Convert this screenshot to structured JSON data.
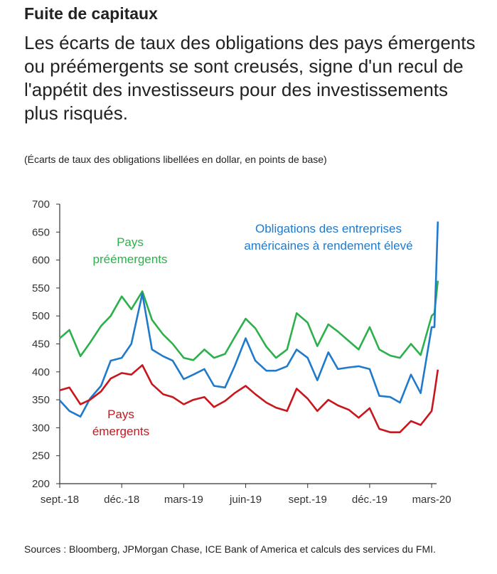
{
  "title": "Fuite de capitaux",
  "subtitle": "Les écarts de taux des obligations des pays émergents ou préémergents se sont creusés, signe d'un recul de l'appétit des investisseurs pour des investissements plus risqués.",
  "note": "(Écarts de taux des obligations libellées en dollar, en points de base)",
  "sources": "Sources : Bloomberg, JPMorgan Chase, ICE Bank of America et calculs des services du FMI.",
  "chart_data": {
    "type": "line",
    "title": "",
    "xlabel": "",
    "ylabel": "",
    "ylim": [
      200,
      700
    ],
    "yticks": [
      "200",
      "250",
      "300",
      "350",
      "400",
      "450",
      "500",
      "550",
      "600",
      "650",
      "700"
    ],
    "xticks": [
      {
        "label": "sept.-18",
        "date": "2018-09-01"
      },
      {
        "label": "déc.-18",
        "date": "2018-12-01"
      },
      {
        "label": "mars-19",
        "date": "2019-03-01"
      },
      {
        "label": "juin-19",
        "date": "2019-06-01"
      },
      {
        "label": "sept.-19",
        "date": "2019-09-01"
      },
      {
        "label": "déc.-19",
        "date": "2019-12-01"
      },
      {
        "label": "mars-20",
        "date": "2020-03-01"
      }
    ],
    "grid": false,
    "legend": "inline labels",
    "x": [
      "2018-09-01",
      "2018-09-15",
      "2018-10-01",
      "2018-10-15",
      "2018-11-01",
      "2018-11-15",
      "2018-12-01",
      "2018-12-15",
      "2019-01-01",
      "2019-01-15",
      "2019-02-01",
      "2019-02-15",
      "2019-03-01",
      "2019-03-15",
      "2019-04-01",
      "2019-04-15",
      "2019-05-01",
      "2019-05-15",
      "2019-06-01",
      "2019-06-15",
      "2019-07-01",
      "2019-07-15",
      "2019-08-01",
      "2019-08-15",
      "2019-09-01",
      "2019-09-15",
      "2019-10-01",
      "2019-10-15",
      "2019-11-01",
      "2019-11-15",
      "2019-12-01",
      "2019-12-15",
      "2020-01-01",
      "2020-01-15",
      "2020-02-01",
      "2020-02-15",
      "2020-03-01",
      "2020-03-05",
      "2020-03-10"
    ],
    "series": [
      {
        "name": "Pays préémergents",
        "label_lines": [
          "Pays",
          "préémergents"
        ],
        "color": "#2cb04c",
        "values": [
          460,
          475,
          428,
          452,
          482,
          500,
          535,
          512,
          544,
          493,
          467,
          450,
          425,
          421,
          440,
          425,
          432,
          462,
          495,
          478,
          445,
          425,
          440,
          505,
          488,
          446,
          485,
          472,
          455,
          440,
          480,
          440,
          429,
          425,
          450,
          430,
          500,
          505,
          563
        ]
      },
      {
        "name": "Obligations des entreprises américaines à rendement élevé",
        "label_lines": [
          "Obligations des entreprises",
          "américaines à rendement élevé"
        ],
        "color": "#1f7acb",
        "values": [
          349,
          330,
          320,
          352,
          375,
          420,
          425,
          450,
          540,
          440,
          428,
          420,
          387,
          395,
          405,
          375,
          372,
          410,
          460,
          420,
          402,
          402,
          410,
          440,
          425,
          385,
          435,
          405,
          408,
          410,
          405,
          357,
          355,
          345,
          395,
          362,
          480,
          480,
          669
        ]
      },
      {
        "name": "Pays émergents",
        "label_lines": [
          "Pays",
          "émergents"
        ],
        "color": "#c8161d",
        "values": [
          367,
          372,
          342,
          350,
          365,
          388,
          398,
          395,
          412,
          378,
          360,
          355,
          342,
          350,
          355,
          337,
          348,
          362,
          375,
          360,
          345,
          336,
          330,
          370,
          352,
          330,
          350,
          340,
          332,
          318,
          335,
          298,
          292,
          292,
          312,
          305,
          330,
          362,
          404
        ]
      }
    ]
  }
}
